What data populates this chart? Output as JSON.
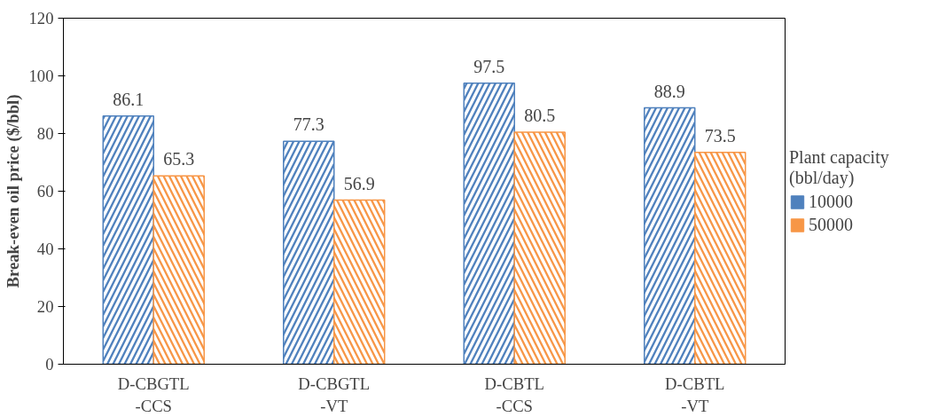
{
  "chart_data": {
    "type": "bar",
    "ylabel": "Break-even oil price ($/bbl)",
    "legend_title": "Plant capacity\n(bbl/day)",
    "categories": [
      "D-CBGTL\n-CCS",
      "D-CBGTL\n-VT",
      "D-CBTL\n-CCS",
      "D-CBTL\n-VT"
    ],
    "series": [
      {
        "name": "10000",
        "color": "#4f81bd",
        "values": [
          86.1,
          77.3,
          97.5,
          88.9
        ]
      },
      {
        "name": "50000",
        "color": "#f79646",
        "values": [
          65.3,
          56.9,
          80.5,
          73.5
        ]
      }
    ],
    "ylim": [
      0,
      120
    ],
    "yticks": [
      0,
      20,
      40,
      60,
      80,
      100,
      120
    ],
    "grid": false,
    "legend": "right",
    "data_labels": true
  }
}
